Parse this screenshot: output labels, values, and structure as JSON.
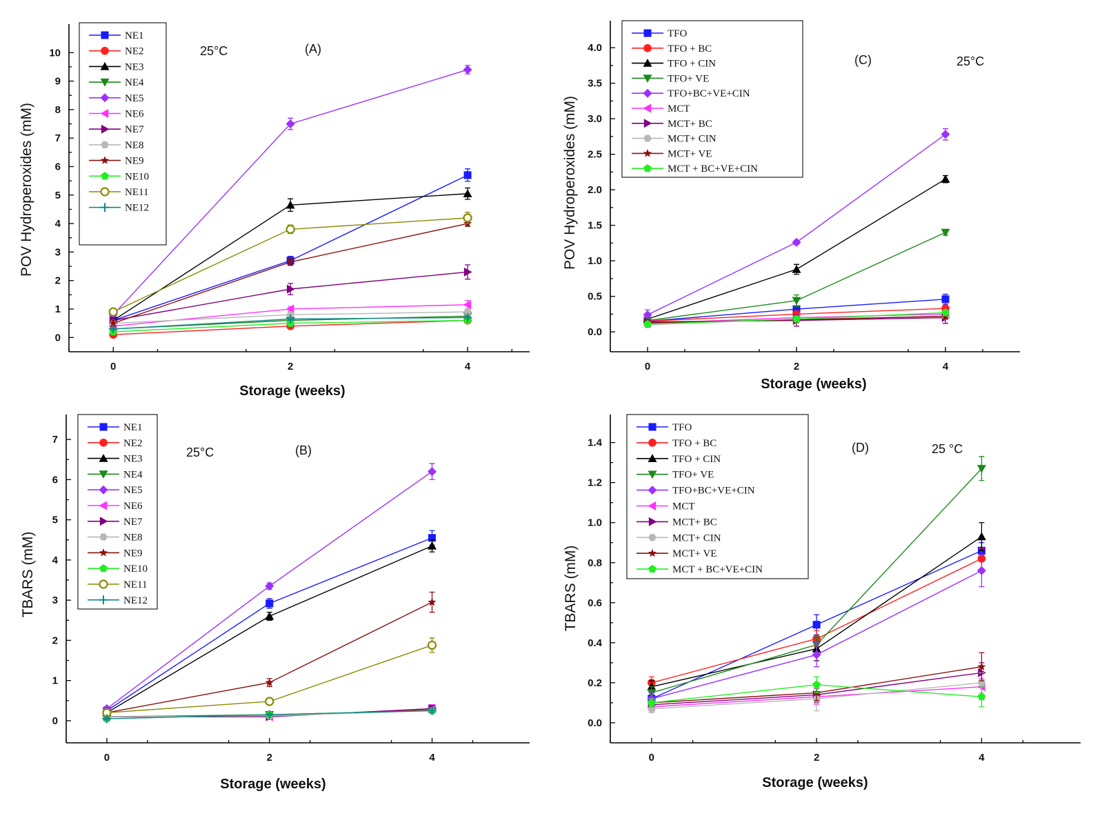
{
  "colors": {
    "blue": "#1a1aff",
    "red": "#ff2020",
    "black": "#000000",
    "green": "#1a8a1a",
    "violet": "#9b30ff",
    "magenta": "#ff30ff",
    "purple": "#800080",
    "lightgray": "#b8b8b8",
    "darkred": "#8b1010",
    "brightgreen": "#22ee22",
    "olive": "#8a8a00",
    "teal": "#108a8a"
  },
  "chart_data": [
    {
      "id": "A",
      "type": "line",
      "panel_label": "(A)",
      "temperature_label": "25°C",
      "xlabel": "Storage (weeks)",
      "ylabel": "POV Hydroperoxides (mM)",
      "x": [
        0,
        2,
        4
      ],
      "xticks": [
        "0",
        "2",
        "4"
      ],
      "xlim": [
        -0.5,
        4.7
      ],
      "ylim": [
        -0.5,
        11.0
      ],
      "yticks": [
        "0",
        "1",
        "2",
        "3",
        "4",
        "5",
        "6",
        "7",
        "8",
        "9",
        "10"
      ],
      "ytick_values": [
        0,
        1,
        2,
        3,
        4,
        5,
        6,
        7,
        8,
        9,
        10
      ],
      "series": [
        {
          "name": "NE1",
          "color": "#1a1aff",
          "marker": "square",
          "values": [
            0.6,
            2.7,
            5.7
          ],
          "errors": [
            0.1,
            0.15,
            0.22
          ]
        },
        {
          "name": "NE2",
          "color": "#ff2020",
          "marker": "circle",
          "values": [
            0.1,
            0.4,
            0.6
          ],
          "errors": [
            0.05,
            0.05,
            0.05
          ]
        },
        {
          "name": "NE3",
          "color": "#000000",
          "marker": "triangle-up",
          "values": [
            0.6,
            4.65,
            5.05
          ],
          "errors": [
            0.1,
            0.22,
            0.2
          ]
        },
        {
          "name": "NE4",
          "color": "#1a8a1a",
          "marker": "triangle-down",
          "values": [
            0.3,
            0.6,
            0.75
          ],
          "errors": [
            0.05,
            0.05,
            0.05
          ]
        },
        {
          "name": "NE5",
          "color": "#9b30ff",
          "marker": "diamond",
          "values": [
            0.8,
            7.5,
            9.4
          ],
          "errors": [
            0.1,
            0.2,
            0.15
          ]
        },
        {
          "name": "NE6",
          "color": "#ff30ff",
          "marker": "triangle-left",
          "values": [
            0.4,
            1.0,
            1.15
          ],
          "errors": [
            0.05,
            0.08,
            0.15
          ]
        },
        {
          "name": "NE7",
          "color": "#800080",
          "marker": "triangle-right",
          "values": [
            0.6,
            1.7,
            2.3
          ],
          "errors": [
            0.1,
            0.2,
            0.25
          ]
        },
        {
          "name": "NE8",
          "color": "#b8b8b8",
          "marker": "hexagon",
          "values": [
            0.5,
            0.8,
            0.9
          ],
          "errors": [
            0.05,
            0.05,
            0.05
          ]
        },
        {
          "name": "NE9",
          "color": "#8b1010",
          "marker": "star",
          "values": [
            0.5,
            2.65,
            4.0
          ],
          "errors": [
            0.1,
            0.12,
            0.1
          ]
        },
        {
          "name": "NE10",
          "color": "#22ee22",
          "marker": "pentagon",
          "values": [
            0.2,
            0.5,
            0.6
          ],
          "errors": [
            0.05,
            0.05,
            0.05
          ]
        },
        {
          "name": "NE11",
          "color": "#8a8a00",
          "marker": "circle-open",
          "values": [
            0.9,
            3.8,
            4.2
          ],
          "errors": [
            0.1,
            0.15,
            0.2
          ]
        },
        {
          "name": "NE12",
          "color": "#108a8a",
          "marker": "plus",
          "values": [
            0.3,
            0.65,
            0.7
          ],
          "errors": [
            0.05,
            0.05,
            0.05
          ]
        }
      ]
    },
    {
      "id": "C",
      "type": "line",
      "panel_label": "(C)",
      "temperature_label": "25°C",
      "xlabel": "Storage (weeks)",
      "ylabel": "POV Hydroperoxides (mM)",
      "x": [
        0,
        2,
        4
      ],
      "xticks": [
        "0",
        "2",
        "4"
      ],
      "xlim": [
        -0.5,
        5.0
      ],
      "ylim": [
        -0.28,
        4.38
      ],
      "yticks": [
        "0.0",
        "0.5",
        "1.0",
        "1.5",
        "2.0",
        "2.5",
        "3.0",
        "3.5",
        "4.0"
      ],
      "ytick_values": [
        0,
        0.5,
        1,
        1.5,
        2,
        2.5,
        3,
        3.5,
        4
      ],
      "series": [
        {
          "name": "TFO",
          "color": "#1a1aff",
          "marker": "square",
          "values": [
            0.15,
            0.32,
            0.46
          ],
          "errors": [
            0.04,
            0.04,
            0.07
          ]
        },
        {
          "name": "TFO + BC",
          "color": "#ff2020",
          "marker": "circle",
          "values": [
            0.15,
            0.25,
            0.33
          ],
          "errors": [
            0.03,
            0.03,
            0.04
          ]
        },
        {
          "name": "TFO + CIN",
          "color": "#000000",
          "marker": "triangle-up",
          "values": [
            0.18,
            0.88,
            2.15
          ],
          "errors": [
            0.03,
            0.07,
            0.05
          ]
        },
        {
          "name": "TFO+ VE",
          "color": "#1a8a1a",
          "marker": "triangle-down",
          "values": [
            0.16,
            0.44,
            1.4
          ],
          "errors": [
            0.03,
            0.08,
            0.04
          ]
        },
        {
          "name": "TFO+BC+VE+CIN",
          "color": "#9b30ff",
          "marker": "diamond",
          "values": [
            0.24,
            1.26,
            2.78
          ],
          "errors": [
            0.07,
            0.03,
            0.08
          ]
        },
        {
          "name": "MCT",
          "color": "#ff30ff",
          "marker": "triangle-left",
          "values": [
            0.12,
            0.2,
            0.25
          ],
          "errors": [
            0.03,
            0.04,
            0.04
          ]
        },
        {
          "name": "MCT+ BC",
          "color": "#800080",
          "marker": "triangle-right",
          "values": [
            0.14,
            0.16,
            0.2
          ],
          "errors": [
            0.03,
            0.08,
            0.08
          ]
        },
        {
          "name": "MCT+ CIN",
          "color": "#b8b8b8",
          "marker": "hexagon",
          "values": [
            0.1,
            0.18,
            0.22
          ],
          "errors": [
            0.03,
            0.04,
            0.04
          ]
        },
        {
          "name": "MCT+ VE",
          "color": "#8b1010",
          "marker": "star",
          "values": [
            0.13,
            0.17,
            0.22
          ],
          "errors": [
            0.03,
            0.04,
            0.04
          ]
        },
        {
          "name": "MCT + BC+VE+CIN",
          "color": "#22ee22",
          "marker": "pentagon",
          "values": [
            0.11,
            0.18,
            0.27
          ],
          "errors": [
            0.03,
            0.04,
            0.04
          ]
        }
      ]
    },
    {
      "id": "B",
      "type": "line",
      "panel_label": "(B)",
      "temperature_label": "25°C",
      "xlabel": "Storage (weeks)",
      "ylabel": "TBARS (mM)",
      "x": [
        0,
        2,
        4
      ],
      "xticks": [
        "0",
        "2",
        "4"
      ],
      "xlim": [
        -0.5,
        5.2
      ],
      "ylim": [
        -0.55,
        7.62
      ],
      "yticks": [
        "0",
        "1",
        "2",
        "3",
        "4",
        "5",
        "6",
        "7"
      ],
      "ytick_values": [
        0,
        1,
        2,
        3,
        4,
        5,
        6,
        7
      ],
      "series": [
        {
          "name": "NE1",
          "color": "#1a1aff",
          "marker": "square",
          "values": [
            0.25,
            2.92,
            4.55
          ],
          "errors": [
            0.05,
            0.12,
            0.18
          ]
        },
        {
          "name": "NE2",
          "color": "#ff2020",
          "marker": "circle",
          "values": [
            0.1,
            0.12,
            0.28
          ],
          "errors": [
            0.03,
            0.03,
            0.05
          ]
        },
        {
          "name": "NE3",
          "color": "#000000",
          "marker": "triangle-up",
          "values": [
            0.2,
            2.6,
            4.35
          ],
          "errors": [
            0.05,
            0.1,
            0.15
          ]
        },
        {
          "name": "NE4",
          "color": "#1a8a1a",
          "marker": "triangle-down",
          "values": [
            0.1,
            0.15,
            0.25
          ],
          "errors": [
            0.03,
            0.03,
            0.05
          ]
        },
        {
          "name": "NE5",
          "color": "#9b30ff",
          "marker": "diamond",
          "values": [
            0.3,
            3.35,
            6.2
          ],
          "errors": [
            0.05,
            0.08,
            0.2
          ]
        },
        {
          "name": "NE6",
          "color": "#ff30ff",
          "marker": "triangle-left",
          "values": [
            0.1,
            0.1,
            0.3
          ],
          "errors": [
            0.03,
            0.03,
            0.1
          ]
        },
        {
          "name": "NE7",
          "color": "#800080",
          "marker": "triangle-right",
          "values": [
            0.1,
            0.1,
            0.3
          ],
          "errors": [
            0.03,
            0.03,
            0.08
          ]
        },
        {
          "name": "NE8",
          "color": "#b8b8b8",
          "marker": "hexagon",
          "values": [
            0.1,
            0.12,
            0.25
          ],
          "errors": [
            0.03,
            0.03,
            0.05
          ]
        },
        {
          "name": "NE9",
          "color": "#8b1010",
          "marker": "star",
          "values": [
            0.2,
            0.95,
            2.95
          ],
          "errors": [
            0.05,
            0.1,
            0.25
          ]
        },
        {
          "name": "NE10",
          "color": "#22ee22",
          "marker": "pentagon",
          "values": [
            0.05,
            0.15,
            0.25
          ],
          "errors": [
            0.03,
            0.03,
            0.05
          ]
        },
        {
          "name": "NE11",
          "color": "#8a8a00",
          "marker": "circle-open",
          "values": [
            0.2,
            0.48,
            1.88
          ],
          "errors": [
            0.05,
            0.08,
            0.18
          ]
        },
        {
          "name": "NE12",
          "color": "#108a8a",
          "marker": "plus",
          "values": [
            0.05,
            0.15,
            0.25
          ],
          "errors": [
            0.03,
            0.03,
            0.05
          ]
        }
      ]
    },
    {
      "id": "D",
      "type": "line",
      "panel_label": "(D)",
      "temperature_label": "25 °C",
      "xlabel": "Storage (weeks)",
      "ylabel": "TBARS (mM)",
      "x": [
        0,
        2,
        4
      ],
      "xticks": [
        "0",
        "2",
        "4"
      ],
      "xlim": [
        -0.5,
        5.2
      ],
      "ylim": [
        -0.1,
        1.54
      ],
      "yticks": [
        "0.0",
        "0.2",
        "0.4",
        "0.6",
        "0.8",
        "1.0",
        "1.2",
        "1.4"
      ],
      "ytick_values": [
        0,
        0.2,
        0.4,
        0.6,
        0.8,
        1.0,
        1.2,
        1.4
      ],
      "series": [
        {
          "name": "TFO",
          "color": "#1a1aff",
          "marker": "square",
          "values": [
            0.12,
            0.49,
            0.86
          ],
          "errors": [
            0.02,
            0.05,
            0.04
          ]
        },
        {
          "name": "TFO + BC",
          "color": "#ff2020",
          "marker": "circle",
          "values": [
            0.2,
            0.42,
            0.82
          ],
          "errors": [
            0.03,
            0.04,
            0.05
          ]
        },
        {
          "name": "TFO + CIN",
          "color": "#000000",
          "marker": "triangle-up",
          "values": [
            0.18,
            0.37,
            0.93
          ],
          "errors": [
            0.03,
            0.06,
            0.07
          ]
        },
        {
          "name": "TFO+ VE",
          "color": "#1a8a1a",
          "marker": "triangle-down",
          "values": [
            0.15,
            0.39,
            1.27
          ],
          "errors": [
            0.03,
            0.04,
            0.06
          ]
        },
        {
          "name": "TFO+BC+VE+CIN",
          "color": "#9b30ff",
          "marker": "diamond",
          "values": [
            0.12,
            0.34,
            0.76
          ],
          "errors": [
            0.03,
            0.06,
            0.08
          ]
        },
        {
          "name": "MCT",
          "color": "#ff30ff",
          "marker": "triangle-left",
          "values": [
            0.08,
            0.13,
            0.18
          ],
          "errors": [
            0.02,
            0.04,
            0.04
          ]
        },
        {
          "name": "MCT+ BC",
          "color": "#800080",
          "marker": "triangle-right",
          "values": [
            0.09,
            0.14,
            0.25
          ],
          "errors": [
            0.03,
            0.04,
            0.05
          ]
        },
        {
          "name": "MCT+ CIN",
          "color": "#b8b8b8",
          "marker": "hexagon",
          "values": [
            0.07,
            0.12,
            0.2
          ],
          "errors": [
            0.02,
            0.06,
            0.05
          ]
        },
        {
          "name": "MCT+ VE",
          "color": "#8b1010",
          "marker": "star",
          "values": [
            0.1,
            0.15,
            0.28
          ],
          "errors": [
            0.02,
            0.04,
            0.07
          ]
        },
        {
          "name": "MCT + BC+VE+CIN",
          "color": "#22ee22",
          "marker": "pentagon",
          "values": [
            0.1,
            0.19,
            0.13
          ],
          "errors": [
            0.02,
            0.04,
            0.05
          ]
        }
      ]
    }
  ]
}
